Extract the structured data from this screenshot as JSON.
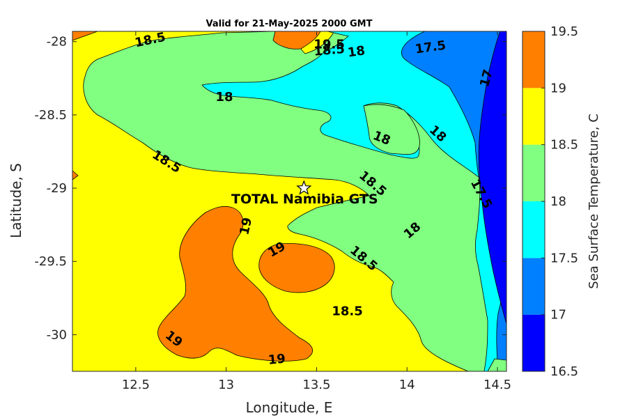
{
  "chart_data": {
    "type": "contour",
    "title": "Valid for 21-May-2025 2000 GMT",
    "xlabel": "Longitude, E",
    "ylabel": "Latitude, S",
    "xlim": [
      12.15,
      14.55
    ],
    "ylim": [
      -30.25,
      -27.93
    ],
    "x_ticks": [
      12.5,
      13,
      13.5,
      14,
      14.5
    ],
    "y_ticks": [
      -28,
      -28.5,
      -29,
      -29.5,
      -30
    ],
    "x_tick_labels": [
      "12.5",
      "13",
      "13.5",
      "14",
      "14.5"
    ],
    "y_tick_labels": [
      "-28",
      "-28.5",
      "-29",
      "-29.5",
      "-30"
    ],
    "colorbar": {
      "label": "Sea Surface Temperature, C",
      "levels": [
        16.5,
        17,
        17.5,
        18,
        18.5,
        19,
        19.5
      ],
      "tick_labels": [
        "16.5",
        "17",
        "17.5",
        "18",
        "18.5",
        "19",
        "19.5"
      ],
      "colors": [
        "#0000ff",
        "#0080ff",
        "#00ffff",
        "#80ff80",
        "#ffff00",
        "#ff8000"
      ]
    },
    "contour_labels": [
      {
        "text": "18.5",
        "lon": 12.58,
        "lat": -27.99,
        "angle": -12
      },
      {
        "text": "19.5",
        "lon": 13.57,
        "lat": -28.02,
        "angle": 0
      },
      {
        "text": "18.5",
        "lon": 13.57,
        "lat": -28.06,
        "angle": -5
      },
      {
        "text": "18",
        "lon": 13.72,
        "lat": -28.07,
        "angle": -8
      },
      {
        "text": "17.5",
        "lon": 14.13,
        "lat": -28.04,
        "angle": -8
      },
      {
        "text": "17",
        "lon": 14.44,
        "lat": -28.25,
        "angle": -75
      },
      {
        "text": "18",
        "lon": 12.99,
        "lat": -28.38,
        "angle": 0
      },
      {
        "text": "18",
        "lon": 14.17,
        "lat": -28.63,
        "angle": 42
      },
      {
        "text": "18",
        "lon": 13.86,
        "lat": -28.66,
        "angle": 22
      },
      {
        "text": "18.5",
        "lon": 12.67,
        "lat": -28.82,
        "angle": 32
      },
      {
        "text": "18.5",
        "lon": 13.81,
        "lat": -28.97,
        "angle": 40
      },
      {
        "text": "17.5",
        "lon": 14.41,
        "lat": -29.04,
        "angle": 62
      },
      {
        "text": "19",
        "lon": 13.11,
        "lat": -29.26,
        "angle": -78
      },
      {
        "text": "18",
        "lon": 14.03,
        "lat": -29.29,
        "angle": -40
      },
      {
        "text": "19",
        "lon": 13.28,
        "lat": -29.42,
        "angle": -30
      },
      {
        "text": "18.5",
        "lon": 13.76,
        "lat": -29.48,
        "angle": 40
      },
      {
        "text": "18.5",
        "lon": 13.67,
        "lat": -29.84,
        "angle": 0
      },
      {
        "text": "19",
        "lon": 12.71,
        "lat": -30.03,
        "angle": 38
      },
      {
        "text": "19",
        "lon": 13.28,
        "lat": -30.17,
        "angle": -5
      }
    ],
    "site": {
      "name": "TOTAL Namibia GTS",
      "lon": 13.43,
      "lat": -29.0,
      "marker": "star"
    }
  }
}
